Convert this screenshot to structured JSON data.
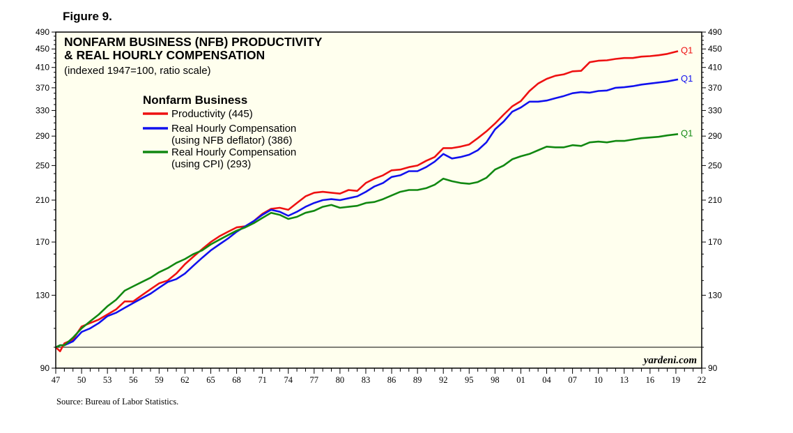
{
  "figure_label": "Figure 9.",
  "source": "Source: Bureau of Labor Statistics.",
  "chart_data": {
    "type": "line",
    "title_lines": [
      "NONFARM BUSINESS (NFB) PRODUCTIVITY",
      "& REAL HOURLY COMPENSATION"
    ],
    "subtitle": "(indexed 1947=100, ratio scale)",
    "legend_title": "Nonfarm Business",
    "y_scale": "log",
    "ylim": [
      90,
      490
    ],
    "xlim": [
      1947,
      2022
    ],
    "y_ticks": [
      90,
      130,
      170,
      210,
      250,
      290,
      330,
      370,
      410,
      450,
      490
    ],
    "y_tick_labels": [
      "90",
      "130",
      "170",
      "210",
      "250",
      "290",
      "330",
      "370",
      "410",
      "450",
      "490"
    ],
    "x_tick_labels": [
      "47",
      "50",
      "53",
      "56",
      "59",
      "62",
      "65",
      "68",
      "71",
      "74",
      "77",
      "80",
      "83",
      "86",
      "89",
      "92",
      "95",
      "98",
      "01",
      "04",
      "07",
      "10",
      "13",
      "16",
      "19",
      "22"
    ],
    "reference_line": 100,
    "watermark": "yardeni.com",
    "colors": {
      "background": "#ffffee",
      "productivity": "#ee1111",
      "comp_nfb": "#1111ee",
      "comp_cpi": "#118811"
    },
    "series": [
      {
        "name": "Productivity",
        "legend": [
          "Productivity (445)"
        ],
        "color": "#ee1111",
        "end_label": "Q1",
        "x": [
          1947,
          1947.5,
          1948,
          1949,
          1950,
          1951,
          1952,
          1953,
          1954,
          1955,
          1956,
          1957,
          1958,
          1959,
          1960,
          1961,
          1962,
          1963,
          1964,
          1965,
          1966,
          1967,
          1968,
          1969,
          1970,
          1971,
          1972,
          1973,
          1974,
          1975,
          1976,
          1977,
          1978,
          1979,
          1980,
          1981,
          1982,
          1983,
          1984,
          1985,
          1986,
          1987,
          1988,
          1989,
          1990,
          1991,
          1992,
          1993,
          1994,
          1995,
          1996,
          1997,
          1998,
          1999,
          2000,
          2001,
          2002,
          2003,
          2004,
          2005,
          2006,
          2007,
          2008,
          2009,
          2010,
          2011,
          2012,
          2013,
          2014,
          2015,
          2016,
          2017,
          2018,
          2019.25
        ],
        "values": [
          100,
          98,
          102,
          104,
          111,
          113,
          115,
          118,
          121,
          126,
          126,
          130,
          134,
          138,
          140,
          145,
          152,
          158,
          164,
          170,
          175,
          179,
          183,
          184,
          189,
          196,
          201,
          202,
          200,
          207,
          214,
          218,
          219,
          218,
          217,
          221,
          220,
          229,
          234,
          238,
          244,
          245,
          248,
          250,
          256,
          261,
          273,
          273,
          275,
          278,
          287,
          297,
          309,
          323,
          337,
          346,
          364,
          378,
          387,
          393,
          396,
          402,
          403,
          421,
          424,
          425,
          428,
          430,
          430,
          433,
          434,
          436,
          439,
          445
        ]
      },
      {
        "name": "Real Hourly Compensation (using NFB deflator)",
        "legend": [
          "Real Hourly Compensation",
          "(using NFB deflator) (386)"
        ],
        "color": "#1111ee",
        "end_label": "Q1",
        "x": [
          1947,
          1947.5,
          1948,
          1949,
          1950,
          1951,
          1952,
          1953,
          1954,
          1955,
          1956,
          1957,
          1958,
          1959,
          1960,
          1961,
          1962,
          1963,
          1964,
          1965,
          1966,
          1967,
          1968,
          1969,
          1970,
          1971,
          1972,
          1973,
          1974,
          1975,
          1976,
          1977,
          1978,
          1979,
          1980,
          1981,
          1982,
          1983,
          1984,
          1985,
          1986,
          1987,
          1988,
          1989,
          1990,
          1991,
          1992,
          1993,
          1994,
          1995,
          1996,
          1997,
          1998,
          1999,
          2000,
          2001,
          2002,
          2003,
          2004,
          2005,
          2006,
          2007,
          2008,
          2009,
          2010,
          2011,
          2012,
          2013,
          2014,
          2015,
          2016,
          2017,
          2018,
          2019.25
        ],
        "values": [
          100,
          101,
          101,
          103,
          108,
          110,
          113,
          117,
          119,
          122,
          125,
          128,
          131,
          135,
          139,
          141,
          145,
          151,
          157,
          163,
          168,
          173,
          179,
          184,
          189,
          195,
          200,
          198,
          194,
          198,
          203,
          207,
          210,
          211,
          210,
          212,
          214,
          219,
          225,
          229,
          236,
          238,
          243,
          243,
          248,
          255,
          265,
          259,
          261,
          264,
          270,
          281,
          300,
          312,
          328,
          335,
          345,
          345,
          347,
          351,
          355,
          360,
          362,
          361,
          364,
          365,
          370,
          371,
          373,
          376,
          378,
          380,
          382,
          386
        ]
      },
      {
        "name": "Real Hourly Compensation (using CPI)",
        "legend": [
          "Real Hourly Compensation",
          "(using CPI) (293)"
        ],
        "color": "#118811",
        "end_label": "Q1",
        "x": [
          1947,
          1947.5,
          1948,
          1949,
          1950,
          1951,
          1952,
          1953,
          1954,
          1955,
          1956,
          1957,
          1958,
          1959,
          1960,
          1961,
          1962,
          1963,
          1964,
          1965,
          1966,
          1967,
          1968,
          1969,
          1970,
          1971,
          1972,
          1973,
          1974,
          1975,
          1976,
          1977,
          1978,
          1979,
          1980,
          1981,
          1982,
          1983,
          1984,
          1985,
          1986,
          1987,
          1988,
          1989,
          1990,
          1991,
          1992,
          1993,
          1994,
          1995,
          1996,
          1997,
          1998,
          1999,
          2000,
          2001,
          2002,
          2003,
          2004,
          2005,
          2006,
          2007,
          2008,
          2009,
          2010,
          2011,
          2012,
          2013,
          2014,
          2015,
          2016,
          2017,
          2018,
          2019.25
        ],
        "values": [
          100,
          101,
          101,
          105,
          110,
          114,
          118,
          123,
          127,
          133,
          136,
          139,
          142,
          146,
          149,
          153,
          156,
          160,
          163,
          168,
          172,
          176,
          180,
          183,
          187,
          192,
          197,
          195,
          191,
          193,
          197,
          199,
          203,
          205,
          202,
          203,
          204,
          207,
          208,
          211,
          215,
          219,
          221,
          221,
          223,
          227,
          234,
          231,
          229,
          228,
          230,
          235,
          245,
          250,
          258,
          262,
          265,
          270,
          275,
          274,
          274,
          277,
          276,
          281,
          282,
          281,
          283,
          283,
          285,
          287,
          288,
          289,
          291,
          293
        ]
      }
    ]
  }
}
